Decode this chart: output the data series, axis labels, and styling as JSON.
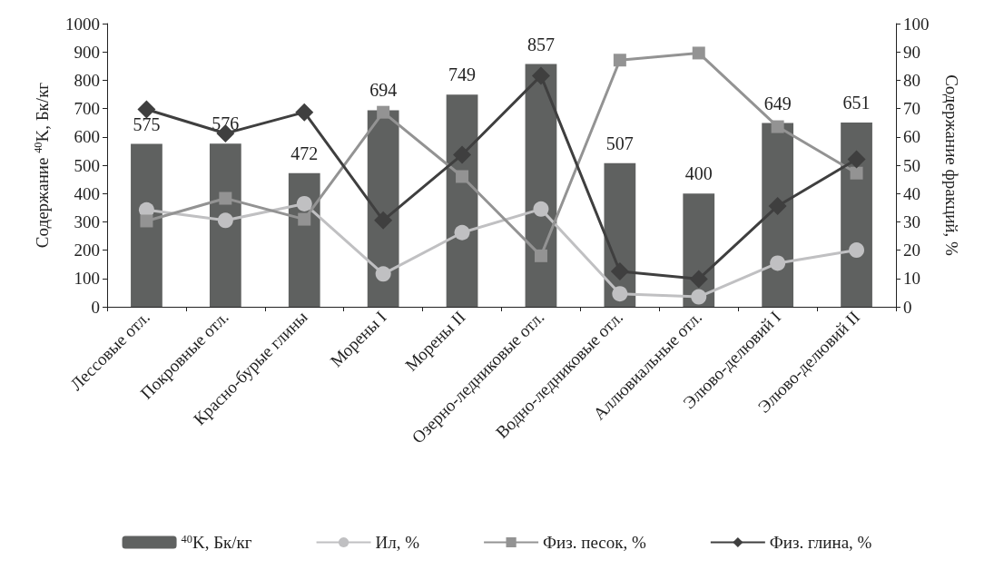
{
  "chart_data": {
    "type": "bar",
    "ylabel": "Содержание $^{40}$K, Бк/кг",
    "y2label": "Содержание фракций, %",
    "categories": [
      "Лессовые отл.",
      "Покровные отл.",
      "Красно-бурые глины",
      "Морены I",
      "Морены II",
      "Озерно-ледниковые отл.",
      "Водно-ледниковые отл.",
      "Аллювиальные отл.",
      "Элюво-делювий I",
      "Элюво-делювий II"
    ],
    "series": [
      {
        "name": "$^{40}$K, Бк/кг",
        "color": "#5f6160",
        "values": [
          575,
          576,
          472,
          694,
          749,
          857,
          507,
          400,
          649,
          651
        ],
        "value_labels": [
          "575",
          "576",
          "472",
          "694",
          "749",
          "857",
          "507",
          "400",
          "649",
          "651"
        ]
      },
      {
        "name": "Ил, %",
        "type": "line",
        "axis": "y2",
        "marker": "circle",
        "color": "#c0c0c2",
        "values": [
          34.2,
          30.5,
          36.4,
          11.6,
          26.2,
          34.5,
          4.6,
          3.5,
          15.4,
          20.0
        ]
      },
      {
        "name": "Физ. песок, %",
        "type": "line",
        "axis": "y2",
        "marker": "square",
        "color": "#939393",
        "values": [
          30.3,
          38.3,
          30.9,
          68.7,
          46.0,
          18.0,
          87.1,
          89.6,
          63.6,
          47.2
        ]
      },
      {
        "name": "Физ. глина, %",
        "type": "line",
        "axis": "y2",
        "marker": "diamond",
        "color": "#3f3f3f",
        "values": [
          69.7,
          61.2,
          68.7,
          30.5,
          53.7,
          81.6,
          12.5,
          9.8,
          35.6,
          52.1
        ]
      }
    ],
    "ylim": [
      0,
      1000
    ],
    "yticks": [
      0,
      100,
      200,
      300,
      400,
      500,
      600,
      700,
      800,
      900,
      1000
    ],
    "y2lim": [
      0,
      100
    ],
    "y2ticks": [
      0,
      10,
      20,
      30,
      40,
      50,
      60,
      70,
      80,
      90,
      100
    ],
    "grid": false,
    "legend": "bottom"
  }
}
